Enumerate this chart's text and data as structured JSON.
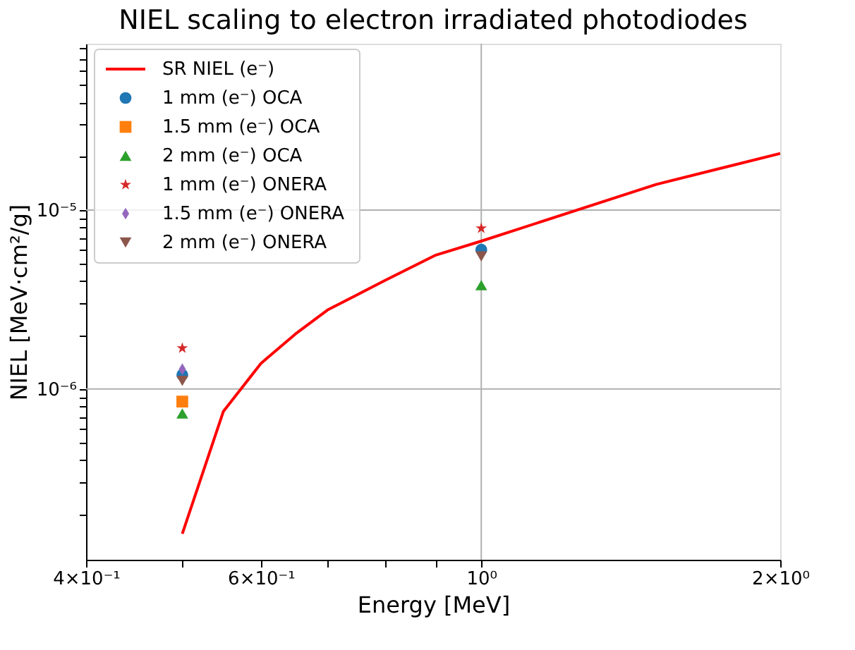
{
  "chart_data": {
    "type": "scatter",
    "title": "NIEL scaling to electron irradiated photodiodes",
    "xlabel": "Energy [MeV]",
    "ylabel": "NIEL [MeV·cm²/g]",
    "log": "xy",
    "grid": true,
    "legend": "top left",
    "xlim": [
      0.4,
      2
    ],
    "ylim": [
      1.11e-07,
      8.5e-05
    ],
    "xticks": [
      {
        "value": 0.4,
        "label": "4×10⁻¹"
      },
      {
        "value": 0.5,
        "label": null
      },
      {
        "value": 0.6,
        "label": "6×10⁻¹"
      },
      {
        "value": 0.7,
        "label": null
      },
      {
        "value": 0.8,
        "label": null
      },
      {
        "value": 0.9,
        "label": null
      },
      {
        "value": 1,
        "label": "10⁰"
      },
      {
        "value": 2,
        "label": "2×10⁰"
      }
    ],
    "yticks": [
      {
        "value": 2e-07,
        "label": null
      },
      {
        "value": 3e-07,
        "label": null
      },
      {
        "value": 4e-07,
        "label": null
      },
      {
        "value": 5e-07,
        "label": null
      },
      {
        "value": 6e-07,
        "label": null
      },
      {
        "value": 7e-07,
        "label": null
      },
      {
        "value": 8e-07,
        "label": null
      },
      {
        "value": 9e-07,
        "label": null
      },
      {
        "value": 1e-06,
        "label": "10⁻⁶"
      },
      {
        "value": 2e-06,
        "label": null
      },
      {
        "value": 3e-06,
        "label": null
      },
      {
        "value": 4e-06,
        "label": null
      },
      {
        "value": 5e-06,
        "label": null
      },
      {
        "value": 6e-06,
        "label": null
      },
      {
        "value": 7e-06,
        "label": null
      },
      {
        "value": 8e-06,
        "label": null
      },
      {
        "value": 9e-06,
        "label": null
      },
      {
        "value": 1e-05,
        "label": "10⁻⁵"
      },
      {
        "value": 2e-05,
        "label": null
      },
      {
        "value": 3e-05,
        "label": null
      },
      {
        "value": 4e-05,
        "label": null
      },
      {
        "value": 5e-05,
        "label": null
      },
      {
        "value": 6e-05,
        "label": null
      },
      {
        "value": 7e-05,
        "label": null
      },
      {
        "value": 8e-05,
        "label": null
      }
    ],
    "series": [
      {
        "name": "SR NIEL (e⁻)",
        "type": "line",
        "marker": "none",
        "line_style": "solid",
        "color": "#ff0000",
        "x": [
          0.5,
          0.55,
          0.6,
          0.65,
          0.7,
          0.8,
          0.9,
          1.0,
          1.5,
          2.0
        ],
        "values": [
          1.55e-07,
          7.5e-07,
          1.39e-06,
          2.03e-06,
          2.76e-06,
          4.04e-06,
          5.6e-06,
          6.7e-06,
          1.39e-05,
          2.07e-05
        ]
      },
      {
        "name": "1 mm (e⁻) OCA",
        "marker": "circle",
        "color": "#1f77b4",
        "x": [
          0.5,
          1.0
        ],
        "values": [
          1.2e-06,
          6e-06
        ]
      },
      {
        "name": "1.5 mm (e⁻) OCA",
        "marker": "square",
        "color": "#ff7f0e",
        "x": [
          0.5
        ],
        "values": [
          8.5e-07
        ]
      },
      {
        "name": "2 mm (e⁻) OCA",
        "marker": "triangle",
        "color": "#2ca02c",
        "x": [
          0.5,
          1.0
        ],
        "values": [
          7.3e-07,
          3.8e-06
        ]
      },
      {
        "name": "1 mm (e⁻) ONERA",
        "marker": "star",
        "color": "#d62728",
        "x": [
          0.5,
          1.0
        ],
        "values": [
          1.69e-06,
          7.9e-06
        ]
      },
      {
        "name": "1.5 mm (e⁻) ONERA",
        "marker": "diamond",
        "color": "#9467bd",
        "x": [
          0.5
        ],
        "values": [
          1.29e-06
        ]
      },
      {
        "name": "2 mm (e⁻) ONERA",
        "marker": "triangle-down",
        "color": "#8c564b",
        "x": [
          0.5,
          1.0
        ],
        "values": [
          1.11e-06,
          5.5e-06
        ]
      }
    ]
  }
}
